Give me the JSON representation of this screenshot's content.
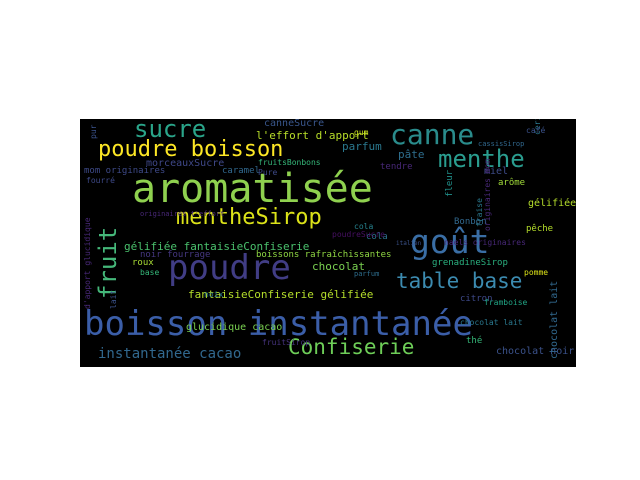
{
  "background": "#000000",
  "page_background": "#ffffff",
  "words": [
    {
      "text": "aromatisée",
      "color": "#8fd14f"
    },
    {
      "text": "boisson instantanée",
      "color": "#3b5ea8"
    },
    {
      "text": "poudre",
      "color": "#413d85"
    },
    {
      "text": "goût",
      "color": "#3a6ea5"
    },
    {
      "text": "poudre boisson",
      "color": "#fde725"
    },
    {
      "text": "canne",
      "color": "#2a8c8c"
    },
    {
      "text": "sucre",
      "color": "#2aa58a"
    },
    {
      "text": "menthe",
      "color": "#2a9d8f"
    },
    {
      "text": "mentheSirop",
      "color": "#dce319"
    },
    {
      "text": "fruit",
      "color": "#45b87a"
    },
    {
      "text": "table base",
      "color": "#3c8bb0"
    },
    {
      "text": "Confiserie",
      "color": "#6ece58"
    },
    {
      "text": "instantanée cacao",
      "color": "#31688e"
    },
    {
      "text": "chocolat",
      "color": "#7ad151"
    },
    {
      "text": "fantaisieConfiserie gélifiée",
      "color": "#b5de2b"
    },
    {
      "text": "gélifiée fantaisieConfiserie",
      "color": "#4ac16d"
    },
    {
      "text": "parfum",
      "color": "#2a788e"
    },
    {
      "text": "pâte",
      "color": "#2e6e8e"
    },
    {
      "text": "canneSucre",
      "color": "#39568c"
    },
    {
      "text": "l'effort d'apport",
      "color": "#b8de29"
    },
    {
      "text": "morceauxSucre",
      "color": "#3f4889"
    },
    {
      "text": "mom originaires",
      "color": "#3e4a89"
    },
    {
      "text": "caramel",
      "color": "#31688e"
    },
    {
      "text": "fruitsBonbons",
      "color": "#35b779"
    },
    {
      "text": "noir fourrage",
      "color": "#453781"
    },
    {
      "text": "boissons rafraîchissantes",
      "color": "#90d743"
    },
    {
      "text": "glucidique cacao",
      "color": "#7ad151"
    },
    {
      "text": "chocolat noir",
      "color": "#3b528b"
    },
    {
      "text": "chocolat lait",
      "color": "#31688e"
    },
    {
      "text": "grenadineSirop",
      "color": "#2ab07f"
    },
    {
      "text": "gélifiée",
      "color": "#b5de2b"
    },
    {
      "text": "miel",
      "color": "#3e4c8a"
    },
    {
      "text": "arôme",
      "color": "#a0da39"
    },
    {
      "text": "fleur",
      "color": "#21918c"
    },
    {
      "text": "cola",
      "color": "#2c728e"
    },
    {
      "text": "Bonbon",
      "color": "#31688e"
    },
    {
      "text": "pêche",
      "color": "#b5de2b"
    },
    {
      "text": "tendre",
      "color": "#482878"
    },
    {
      "text": "thé",
      "color": "#35b779"
    },
    {
      "text": "citron",
      "color": "#3e4989"
    },
    {
      "text": "roux",
      "color": "#a8db34"
    },
    {
      "text": "base",
      "color": "#35b779"
    },
    {
      "text": "cerise",
      "color": "#2a788e"
    },
    {
      "text": "café",
      "color": "#3b528b"
    },
    {
      "text": "pomme",
      "color": "#dde318"
    },
    {
      "text": "fourré",
      "color": "#3e4a89"
    },
    {
      "text": "gum",
      "color": "#c8e020"
    },
    {
      "text": "pur",
      "color": "#3b528b"
    },
    {
      "text": "lait",
      "color": "#3b528b"
    },
    {
      "text": "cassisSirop",
      "color": "#31688e"
    },
    {
      "text": "fraise",
      "color": "#2a788e"
    },
    {
      "text": "poudreSucre",
      "color": "#471063"
    },
    {
      "text": "originaires mom",
      "color": "#482878"
    },
    {
      "text": "noix",
      "color": "#2a788e"
    },
    {
      "text": "Pure",
      "color": "#3e4a89"
    },
    {
      "text": "d'apport glucidique",
      "color": "#482878"
    },
    {
      "text": "italien",
      "color": "#3b528b"
    },
    {
      "text": "naels originaires",
      "color": "#482878"
    },
    {
      "text": "originaires t'effort",
      "color": "#482878"
    },
    {
      "text": "fruitSirop",
      "color": "#46337e"
    },
    {
      "text": "chocolat lait",
      "color": "#2a788e"
    },
    {
      "text": "framboise",
      "color": "#21a585"
    },
    {
      "text": "cola",
      "color": "#26828e"
    },
    {
      "text": "parfum",
      "color": "#2e6e8e"
    }
  ]
}
